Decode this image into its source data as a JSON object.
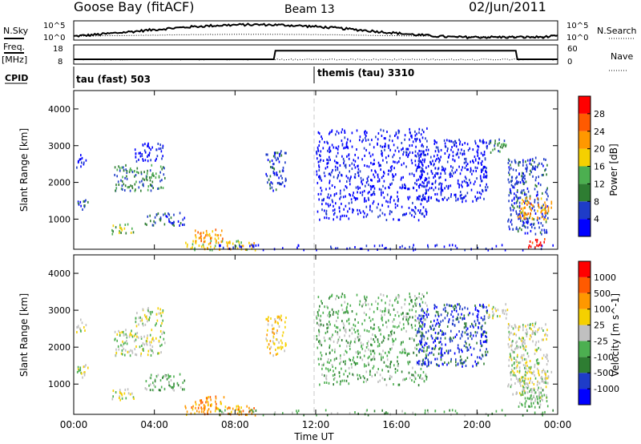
{
  "header": {
    "station": "Goose Bay (fitACF)",
    "beam": "Beam 13",
    "date": "02/Jun/2011"
  },
  "top_labels": {
    "nsky": "N.Sky",
    "nsearch": "N.Search",
    "freq": "Freq.",
    "mhz": "[MHz]",
    "nave": "Nave",
    "cpid": "CPID"
  },
  "noise_ticks_left": [
    "10^5",
    "10^0"
  ],
  "noise_ticks_right": [
    "10^5",
    "10^0"
  ],
  "freq_ticks_left": [
    "18",
    "8"
  ],
  "nave_ticks_right": [
    "60",
    "0"
  ],
  "cpid": [
    {
      "label": "tau (fast) 503",
      "start_hour": 0
    },
    {
      "label": "themis (tau) 3310",
      "start_hour": 12
    }
  ],
  "colors": {
    "power_scale": [
      "#0000ff",
      "#1e3cc8",
      "#2e7d32",
      "#4caf50",
      "#f5d000",
      "#ff9800",
      "#ff5a00",
      "#ff0000"
    ],
    "velocity_scale": [
      "#0000ff",
      "#1e3cc8",
      "#2e7d32",
      "#4caf50",
      "#c0c0c0",
      "#f5d000",
      "#ff9800",
      "#ff5a00",
      "#ff0000"
    ],
    "ground_scatter": "#c0c0c0",
    "noise_line": "#000000",
    "reference_line": "#c8c8c8"
  },
  "chart_data": [
    {
      "type": "heatmap",
      "title": "Power",
      "xlabel": "Time UT",
      "ylabel": "Slant Range [km]",
      "colorbar_label": "Power [dB]",
      "colorbar_ticks": [
        "28",
        "24",
        "20",
        "16",
        "12",
        "8",
        "4"
      ],
      "x_ticks": [
        "00:00",
        "04:00",
        "08:00",
        "12:00",
        "16:00",
        "20:00",
        "00:00"
      ],
      "y_ticks": [
        "4000",
        "3000",
        "2000",
        "1000"
      ],
      "xlim": [
        0,
        24
      ],
      "ylim": [
        180,
        4500
      ],
      "scatter_regions": [
        {
          "t": [
            0.0,
            0.7
          ],
          "r": [
            1250,
            1550
          ],
          "level": 1
        },
        {
          "t": [
            0.1,
            0.6
          ],
          "r": [
            2400,
            2800
          ],
          "level": 0
        },
        {
          "t": [
            1.8,
            3.0
          ],
          "r": [
            600,
            900
          ],
          "level": 3
        },
        {
          "t": [
            2.0,
            4.5
          ],
          "r": [
            1800,
            2500
          ],
          "level": 2
        },
        {
          "t": [
            3.0,
            4.5
          ],
          "r": [
            2600,
            3100
          ],
          "level": 0
        },
        {
          "t": [
            3.5,
            5.5
          ],
          "r": [
            850,
            1200
          ],
          "level": 1
        },
        {
          "t": [
            5.5,
            9.0
          ],
          "r": [
            180,
            450
          ],
          "level": 4
        },
        {
          "t": [
            6.0,
            7.5
          ],
          "r": [
            350,
            750
          ],
          "level": 5
        },
        {
          "t": [
            9.5,
            10.5
          ],
          "r": [
            1800,
            2900
          ],
          "level": 1
        },
        {
          "t": [
            7.0,
            24.0
          ],
          "r": [
            180,
            330
          ],
          "level": 0
        },
        {
          "t": [
            12.0,
            17.5
          ],
          "r": [
            1000,
            3500
          ],
          "level": 0
        },
        {
          "t": [
            17.0,
            20.5
          ],
          "r": [
            1500,
            3200
          ],
          "level": 0
        },
        {
          "t": [
            20.5,
            21.5
          ],
          "r": [
            2800,
            3200
          ],
          "level": 2
        },
        {
          "t": [
            21.5,
            23.5
          ],
          "r": [
            600,
            2700
          ],
          "level": 1
        },
        {
          "t": [
            22.0,
            23.7
          ],
          "r": [
            1000,
            1600
          ],
          "level": 5
        },
        {
          "t": [
            22.5,
            23.5
          ],
          "r": [
            250,
            500
          ],
          "level": 7
        }
      ]
    },
    {
      "type": "heatmap",
      "title": "Velocity",
      "xlabel": "Time UT",
      "ylabel": "Slant Range [km]",
      "colorbar_label": "Velocity [m s^-1]",
      "colorbar_ticks": [
        "1000",
        "500",
        "100",
        "25",
        "-25",
        "-100",
        "-500",
        "-1000"
      ],
      "x_ticks": [
        "00:00",
        "04:00",
        "08:00",
        "12:00",
        "16:00",
        "20:00",
        "00:00"
      ],
      "y_ticks": [
        "4000",
        "3000",
        "2000",
        "1000"
      ],
      "xlim": [
        0,
        24
      ],
      "ylim": [
        180,
        4500
      ],
      "scatter_regions": [
        {
          "t": [
            0.0,
            0.7
          ],
          "r": [
            1150,
            1550
          ],
          "level": 4
        },
        {
          "t": [
            0.1,
            0.6
          ],
          "r": [
            2400,
            2800
          ],
          "level": 4
        },
        {
          "t": [
            1.8,
            3.0
          ],
          "r": [
            600,
            900
          ],
          "level": 4
        },
        {
          "t": [
            2.0,
            4.5
          ],
          "r": [
            1800,
            2500
          ],
          "level": 4
        },
        {
          "t": [
            3.0,
            4.5
          ],
          "r": [
            2600,
            3100
          ],
          "level": 4
        },
        {
          "t": [
            3.5,
            5.5
          ],
          "r": [
            850,
            1300
          ],
          "level": 3
        },
        {
          "t": [
            5.5,
            9.0
          ],
          "r": [
            180,
            450
          ],
          "level": 6
        },
        {
          "t": [
            6.0,
            7.5
          ],
          "r": [
            300,
            700
          ],
          "level": 6
        },
        {
          "t": [
            9.5,
            10.5
          ],
          "r": [
            1800,
            2900
          ],
          "level": 5
        },
        {
          "t": [
            7.0,
            24.0
          ],
          "r": [
            180,
            330
          ],
          "level": 3
        },
        {
          "t": [
            12.0,
            17.5
          ],
          "r": [
            1000,
            3500
          ],
          "level": 3
        },
        {
          "t": [
            17.0,
            20.5
          ],
          "r": [
            1500,
            3200
          ],
          "level": 1
        },
        {
          "t": [
            20.5,
            21.5
          ],
          "r": [
            2800,
            3200
          ],
          "level": 4
        },
        {
          "t": [
            21.5,
            23.5
          ],
          "r": [
            600,
            2700
          ],
          "level": 4
        },
        {
          "t": [
            22.0,
            23.7
          ],
          "r": [
            1050,
            1450
          ],
          "level": 4
        },
        {
          "t": [
            22.0,
            23.5
          ],
          "r": [
            400,
            900
          ],
          "level": 3
        }
      ]
    }
  ]
}
